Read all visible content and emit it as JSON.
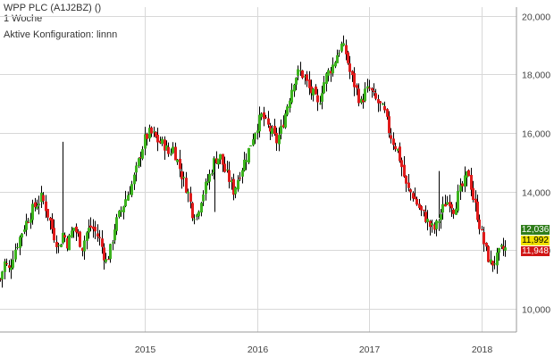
{
  "header": {
    "title": "WPP PLC (A1J2BZ) ()",
    "interval": "1 Woche",
    "config": "Aktive Konfiguration: linnn"
  },
  "colors": {
    "up": "#3cb31e",
    "down": "#e01b1b",
    "grid": "#d8d8d8",
    "wick": "#000000"
  },
  "badges": [
    {
      "label": "12,036",
      "bg": "#2f7d1a",
      "fg": "#ffffff"
    },
    {
      "label": "11,992",
      "bg": "#f2e200",
      "fg": "#000000"
    },
    {
      "label": "11,948",
      "bg": "#d01616",
      "fg": "#ffffff"
    }
  ],
  "chart_data": {
    "type": "candlestick",
    "interval": "weekly",
    "x_ticks": [
      "2015",
      "2016",
      "2017",
      "2018"
    ],
    "y_ticks": [
      "10,000",
      "12,000",
      "14,000",
      "16,000",
      "18,000",
      "20,000"
    ],
    "y_tick_values": [
      10000,
      12000,
      14000,
      16000,
      18000,
      20000
    ],
    "ylim": [
      9200,
      20300
    ],
    "xlim": [
      2013.71,
      2018.31
    ],
    "grid": true,
    "last_values": [
      12036,
      11992,
      11948
    ],
    "close_path": [
      [
        2013.71,
        11000
      ],
      [
        2013.75,
        11600
      ],
      [
        2013.79,
        11300
      ],
      [
        2013.83,
        11900
      ],
      [
        2013.88,
        12400
      ],
      [
        2013.92,
        12800
      ],
      [
        2013.96,
        13100
      ],
      [
        2014.0,
        13400
      ],
      [
        2014.04,
        13600
      ],
      [
        2014.08,
        13800
      ],
      [
        2014.11,
        13500
      ],
      [
        2014.15,
        13000
      ],
      [
        2014.19,
        12500
      ],
      [
        2014.23,
        12100
      ],
      [
        2014.27,
        12600
      ],
      [
        2014.31,
        12200
      ],
      [
        2014.36,
        12800
      ],
      [
        2014.4,
        12500
      ],
      [
        2014.44,
        12100
      ],
      [
        2014.48,
        12600
      ],
      [
        2014.52,
        12800
      ],
      [
        2014.56,
        12600
      ],
      [
        2014.6,
        12300
      ],
      [
        2014.65,
        11600
      ],
      [
        2014.69,
        12000
      ],
      [
        2014.73,
        12800
      ],
      [
        2014.78,
        13300
      ],
      [
        2014.83,
        13800
      ],
      [
        2014.88,
        14200
      ],
      [
        2014.92,
        14700
      ],
      [
        2014.96,
        15300
      ],
      [
        2015.0,
        15800
      ],
      [
        2015.04,
        16000
      ],
      [
        2015.08,
        15900
      ],
      [
        2015.12,
        15700
      ],
      [
        2015.17,
        15600
      ],
      [
        2015.21,
        15300
      ],
      [
        2015.25,
        15500
      ],
      [
        2015.29,
        15000
      ],
      [
        2015.33,
        14500
      ],
      [
        2015.38,
        14000
      ],
      [
        2015.42,
        13300
      ],
      [
        2015.46,
        13200
      ],
      [
        2015.5,
        13800
      ],
      [
        2015.54,
        14200
      ],
      [
        2015.58,
        14600
      ],
      [
        2015.62,
        15100
      ],
      [
        2015.67,
        15200
      ],
      [
        2015.71,
        14700
      ],
      [
        2015.75,
        14400
      ],
      [
        2015.79,
        14000
      ],
      [
        2015.83,
        14500
      ],
      [
        2015.88,
        15000
      ],
      [
        2015.92,
        15400
      ],
      [
        2015.96,
        15900
      ],
      [
        2016.0,
        16300
      ],
      [
        2016.04,
        16600
      ],
      [
        2016.08,
        16300
      ],
      [
        2016.13,
        16000
      ],
      [
        2016.17,
        15700
      ],
      [
        2016.21,
        16100
      ],
      [
        2016.25,
        16700
      ],
      [
        2016.29,
        17300
      ],
      [
        2016.33,
        17900
      ],
      [
        2016.38,
        18100
      ],
      [
        2016.42,
        17900
      ],
      [
        2016.46,
        17500
      ],
      [
        2016.5,
        17300
      ],
      [
        2016.54,
        16900
      ],
      [
        2016.58,
        17600
      ],
      [
        2016.62,
        18000
      ],
      [
        2016.67,
        18300
      ],
      [
        2016.71,
        18700
      ],
      [
        2016.75,
        19000
      ],
      [
        2016.79,
        18700
      ],
      [
        2016.83,
        18000
      ],
      [
        2016.88,
        17500
      ],
      [
        2016.92,
        17000
      ],
      [
        2016.96,
        17400
      ],
      [
        2017.0,
        17500
      ],
      [
        2017.04,
        17200
      ],
      [
        2017.08,
        17000
      ],
      [
        2017.13,
        16700
      ],
      [
        2017.17,
        16100
      ],
      [
        2017.21,
        15700
      ],
      [
        2017.25,
        15400
      ],
      [
        2017.29,
        14800
      ],
      [
        2017.33,
        14100
      ],
      [
        2017.38,
        13900
      ],
      [
        2017.42,
        13600
      ],
      [
        2017.46,
        13300
      ],
      [
        2017.5,
        13100
      ],
      [
        2017.54,
        12800
      ],
      [
        2017.58,
        12700
      ],
      [
        2017.62,
        13100
      ],
      [
        2017.67,
        13600
      ],
      [
        2017.71,
        13700
      ],
      [
        2017.75,
        13400
      ],
      [
        2017.79,
        13900
      ],
      [
        2017.83,
        14200
      ],
      [
        2017.88,
        14700
      ],
      [
        2017.92,
        13800
      ],
      [
        2017.96,
        13200
      ],
      [
        2018.0,
        12500
      ],
      [
        2018.04,
        11900
      ],
      [
        2018.08,
        11500
      ],
      [
        2018.13,
        11700
      ],
      [
        2018.17,
        12000
      ],
      [
        2018.21,
        12036
      ]
    ],
    "spikes": [
      {
        "x": 2014.27,
        "high": 15700
      },
      {
        "x": 2015.62,
        "high": 13300
      },
      {
        "x": 2017.62,
        "high": 14700
      }
    ]
  }
}
